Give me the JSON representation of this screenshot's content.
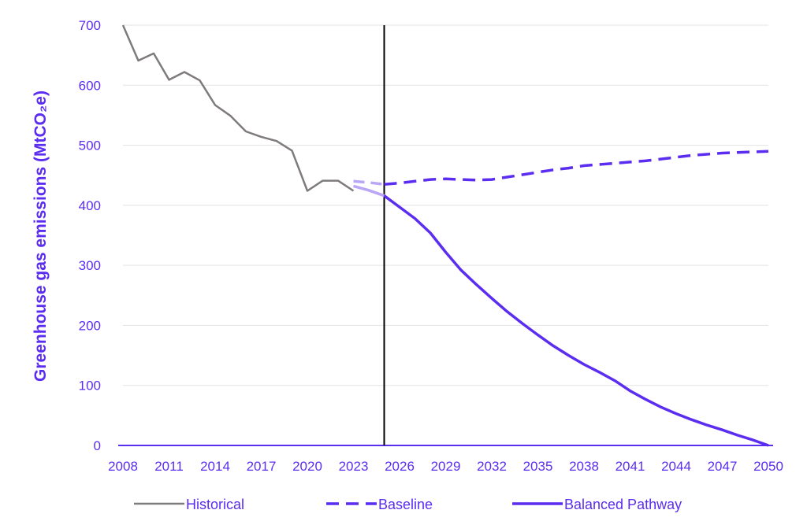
{
  "colors": {
    "historical": "#7f7b7d",
    "baseline": "#5b2df0",
    "pathway": "#5b2df0",
    "projection_faint": "#b9a6f6",
    "axis_text": "#5b2df0",
    "grid": "#e3e3e3",
    "marker_line": "#000000"
  },
  "chart_data": {
    "type": "line",
    "ylabel": "Greenhouse gas emissions (MtCO₂e)",
    "xlabel": "",
    "xlim": [
      2008,
      2050
    ],
    "ylim": [
      0,
      700
    ],
    "x_ticks": [
      "2008",
      "2011",
      "2014",
      "2017",
      "2020",
      "2023",
      "2026",
      "2029",
      "2032",
      "2035",
      "2038",
      "2041",
      "2044",
      "2047",
      "2050"
    ],
    "y_ticks": [
      "0",
      "100",
      "200",
      "300",
      "400",
      "500",
      "600",
      "700"
    ],
    "grid": true,
    "legend_position": "bottom",
    "vertical_marker_x": 2025,
    "series": [
      {
        "name": "Historical",
        "style": "solid",
        "x": [
          2008,
          2009,
          2010,
          2011,
          2012,
          2013,
          2014,
          2015,
          2016,
          2017,
          2018,
          2019,
          2020,
          2021,
          2022,
          2023
        ],
        "values": [
          700,
          641,
          653,
          609,
          622,
          608,
          567,
          549,
          523,
          514,
          507,
          491,
          424,
          441,
          441,
          424
        ]
      },
      {
        "name": "Baseline",
        "style": "dashed",
        "x": [
          2023,
          2024,
          2025,
          2026,
          2027,
          2028,
          2029,
          2030,
          2031,
          2032,
          2033,
          2034,
          2035,
          2036,
          2037,
          2038,
          2039,
          2040,
          2041,
          2042,
          2043,
          2044,
          2045,
          2046,
          2047,
          2048,
          2049,
          2050
        ],
        "values": [
          440,
          438,
          435,
          437,
          440,
          443,
          444,
          443,
          442,
          443,
          447,
          451,
          455,
          459,
          462,
          466,
          468,
          470,
          472,
          474,
          477,
          480,
          483,
          485,
          487,
          488,
          489,
          490
        ]
      },
      {
        "name": "Balanced Pathway",
        "style": "solid",
        "x": [
          2023,
          2024,
          2025,
          2026,
          2027,
          2028,
          2029,
          2030,
          2031,
          2032,
          2033,
          2034,
          2035,
          2036,
          2037,
          2038,
          2039,
          2040,
          2041,
          2042,
          2043,
          2044,
          2045,
          2046,
          2047,
          2048,
          2049,
          2050
        ],
        "values": [
          432,
          425,
          416,
          397,
          378,
          354,
          322,
          292,
          268,
          245,
          223,
          203,
          184,
          166,
          150,
          135,
          122,
          108,
          91,
          77,
          64,
          53,
          43,
          34,
          26,
          17,
          9,
          0
        ]
      }
    ]
  }
}
